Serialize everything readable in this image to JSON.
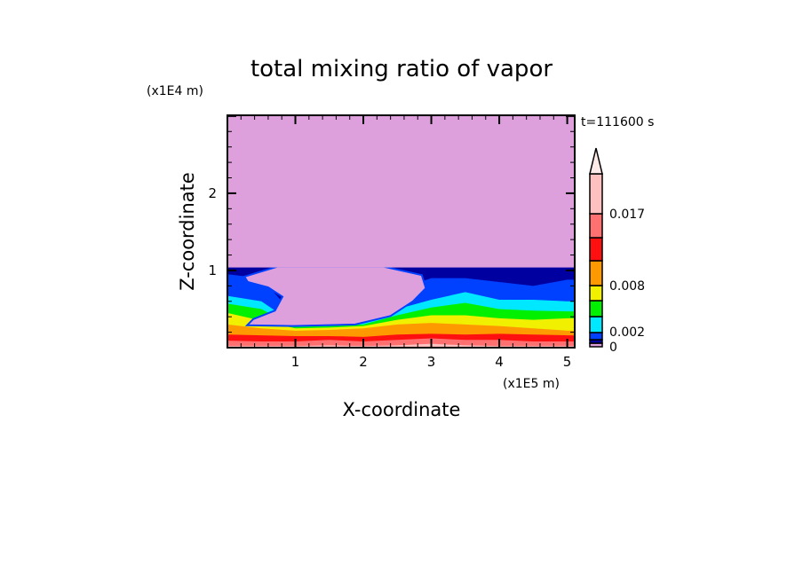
{
  "chart_data": {
    "type": "contour",
    "title": "total mixing ratio of vapor",
    "xlabel": "X-coordinate",
    "ylabel": "Z-coordinate",
    "x_unit": "(x1E5 m)",
    "y_unit": "(x1E4 m)",
    "time_label": "t=111600 s",
    "xlim": [
      0,
      5.11
    ],
    "ylim": [
      0,
      3.01
    ],
    "x_ticks": [
      "1",
      "2",
      "3",
      "4",
      "5"
    ],
    "y_ticks": [
      "1",
      "2"
    ],
    "colorbar": {
      "labels": [
        "0",
        "0.002",
        "0.008",
        "0.017"
      ],
      "levels_bottom_to_top": [
        {
          "color": "#dda0dd"
        },
        {
          "color": "#0000a0"
        },
        {
          "color": "#0040ff"
        },
        {
          "color": "#00e8ff"
        },
        {
          "color": "#00f000"
        },
        {
          "color": "#f0f000"
        },
        {
          "color": "#ff9900"
        },
        {
          "color": "#ff1010"
        },
        {
          "color": "#ff7070"
        },
        {
          "color": "#ffc0c0"
        }
      ],
      "extend_color": "#ffeaea"
    },
    "background_color": "#dda0dd",
    "band_x": [
      0,
      0.5,
      1,
      1.5,
      2,
      2.5,
      3,
      3.5,
      4,
      4.5,
      5,
      5.11
    ],
    "band_tops": [
      {
        "color": "#0000a0",
        "z": [
          1.05,
          1.05,
          1.05,
          1.05,
          1.05,
          1.05,
          1.05,
          1.05,
          1.05,
          1.05,
          1.05,
          1.05
        ]
      },
      {
        "color": "#0040ff",
        "z": [
          0.95,
          0.9,
          0.4,
          0.35,
          0.35,
          0.75,
          0.9,
          0.9,
          0.85,
          0.8,
          0.88,
          0.88
        ]
      },
      {
        "color": "#00e8ff",
        "z": [
          0.67,
          0.6,
          0.3,
          0.3,
          0.32,
          0.5,
          0.62,
          0.72,
          0.62,
          0.62,
          0.6,
          0.6
        ]
      },
      {
        "color": "#00f000",
        "z": [
          0.57,
          0.5,
          0.27,
          0.28,
          0.3,
          0.42,
          0.52,
          0.58,
          0.5,
          0.48,
          0.47,
          0.47
        ]
      },
      {
        "color": "#f0f000",
        "z": [
          0.45,
          0.35,
          0.25,
          0.26,
          0.28,
          0.36,
          0.42,
          0.42,
          0.38,
          0.36,
          0.38,
          0.38
        ]
      },
      {
        "color": "#ff9900",
        "z": [
          0.3,
          0.25,
          0.22,
          0.23,
          0.25,
          0.3,
          0.32,
          0.3,
          0.28,
          0.25,
          0.22,
          0.22
        ]
      },
      {
        "color": "#ff1010",
        "z": [
          0.17,
          0.16,
          0.15,
          0.15,
          0.14,
          0.17,
          0.18,
          0.17,
          0.18,
          0.17,
          0.16,
          0.16
        ]
      },
      {
        "color": "#ff7070",
        "z": [
          0.09,
          0.08,
          0.08,
          0.1,
          0.08,
          0.1,
          0.12,
          0.1,
          0.1,
          0.08,
          0.08,
          0.08
        ]
      },
      {
        "color": "#ffc0c0",
        "z": [
          0.02,
          0.02,
          0.02,
          0.03,
          0.02,
          0.03,
          0.05,
          0.03,
          0.02,
          0.02,
          0.02,
          0.02
        ]
      }
    ],
    "dry_region_outline": [
      [
        0.74,
        1.05
      ],
      [
        0.25,
        0.92
      ],
      [
        0.3,
        0.85
      ],
      [
        0.6,
        0.78
      ],
      [
        0.81,
        0.66
      ],
      [
        0.7,
        0.48
      ],
      [
        0.38,
        0.37
      ],
      [
        0.29,
        0.29
      ],
      [
        0.97,
        0.28
      ],
      [
        1.88,
        0.3
      ],
      [
        2.4,
        0.41
      ],
      [
        2.73,
        0.6
      ],
      [
        2.92,
        0.77
      ],
      [
        2.86,
        0.94
      ],
      [
        2.3,
        1.05
      ]
    ]
  }
}
